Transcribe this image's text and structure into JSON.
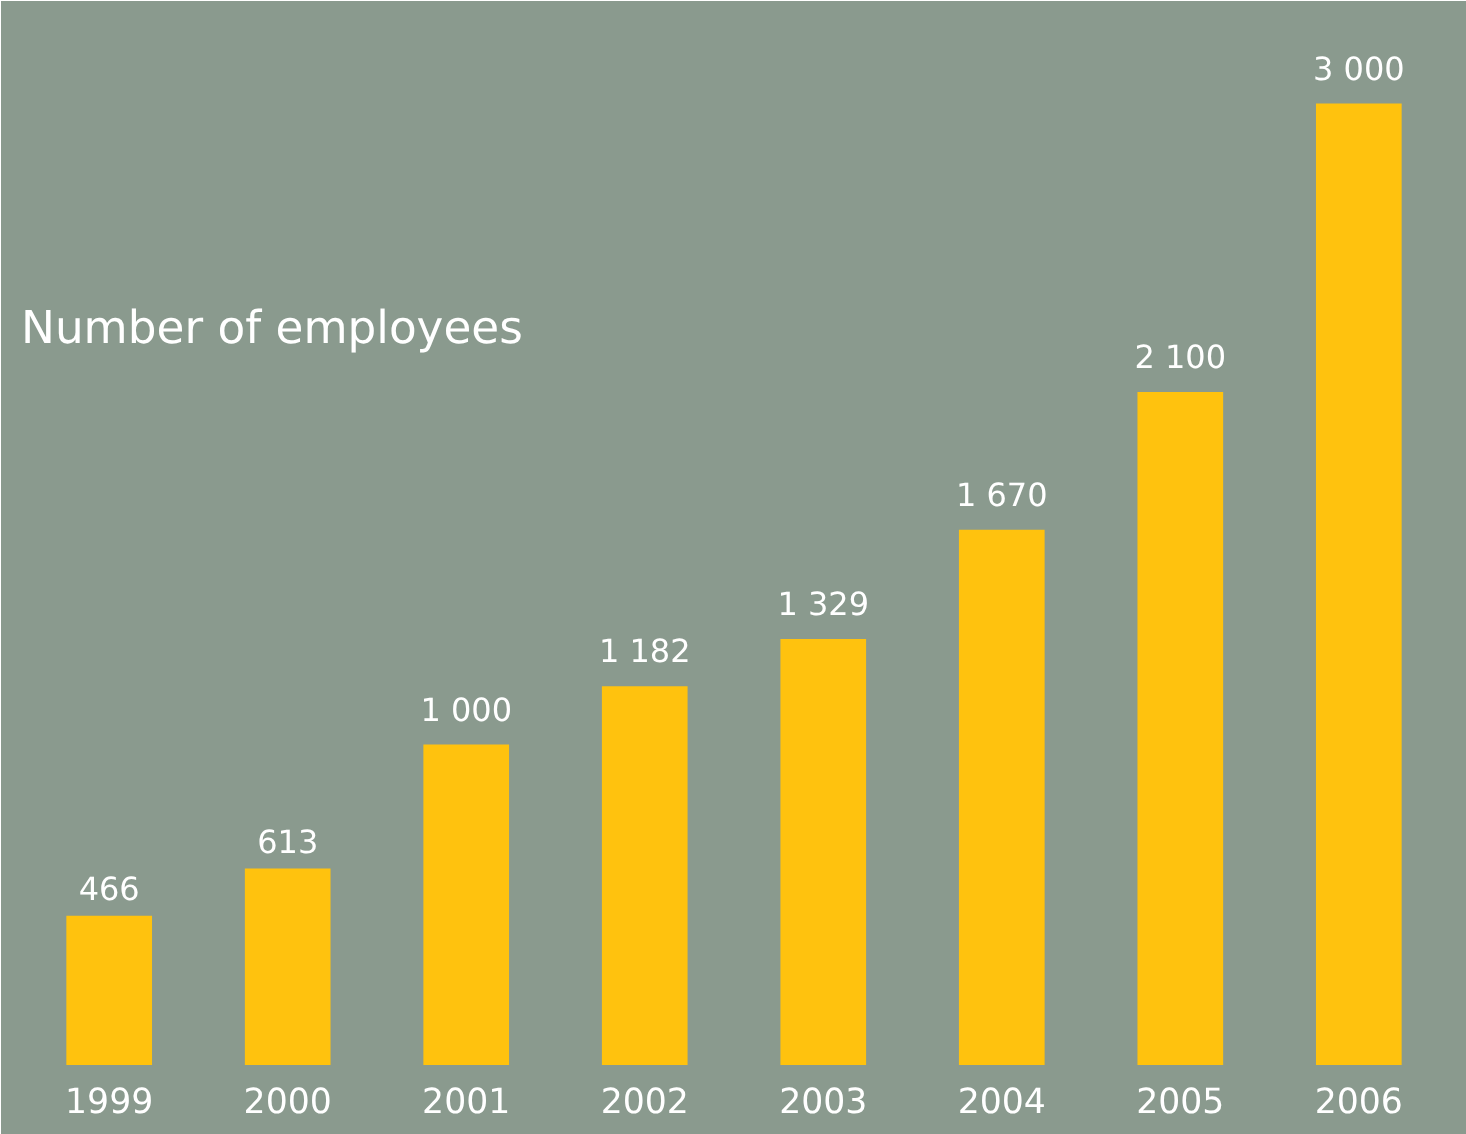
{
  "chart_data": {
    "type": "bar",
    "title": "Number of employees",
    "categories": [
      "1999",
      "2000",
      "2001",
      "2002",
      "2003",
      "2004",
      "2005",
      "2006"
    ],
    "values": [
      466,
      613,
      1000,
      1182,
      1329,
      1670,
      2100,
      3000
    ],
    "value_labels": [
      "466",
      "613",
      "1 000",
      "1 182",
      "1 329",
      "1 670",
      "2 100",
      "3 000"
    ],
    "color": "#ffc20e",
    "grid": false
  }
}
